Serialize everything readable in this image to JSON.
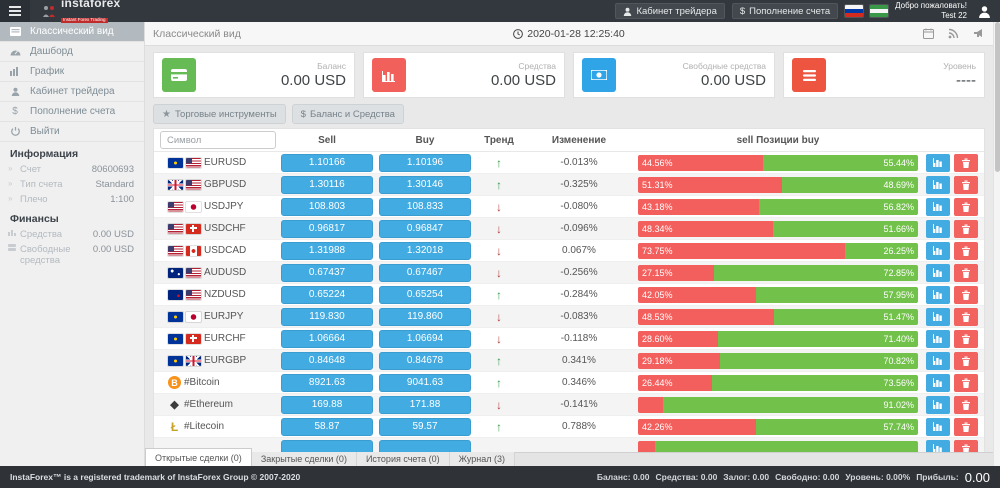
{
  "topbar": {
    "brand": "instaforex",
    "tagline": "Instant Forex Trading",
    "cabinet_button": "Кабинет трейдера",
    "deposit_button": "Пополнение счета",
    "welcome": "Добро пожаловать!",
    "username": "Test 22"
  },
  "sidebar": {
    "items": [
      {
        "label": "Классический вид",
        "active": true
      },
      {
        "label": "Дашборд",
        "active": false
      },
      {
        "label": "График",
        "active": false
      },
      {
        "label": "Кабинет трейдера",
        "active": false
      },
      {
        "label": "Пополнение счета",
        "active": false
      },
      {
        "label": "Выйти",
        "active": false
      }
    ],
    "info_section": {
      "title": "Информация",
      "rows": [
        {
          "label": "Счет",
          "value": "80600693"
        },
        {
          "label": "Тип счета",
          "value": "Standard"
        },
        {
          "label": "Плечо",
          "value": "1:100"
        }
      ]
    },
    "finance_section": {
      "title": "Финансы",
      "rows": [
        {
          "label": "Средства",
          "value": "0.00 USD"
        },
        {
          "label": "Свободные средства",
          "value": "0.00 USD"
        }
      ]
    }
  },
  "main": {
    "title": "Классический вид",
    "datetime": "2020-01-28 12:25:40",
    "cards": [
      {
        "label": "Баланс",
        "value": "0.00 USD",
        "color": "#66bb55",
        "icon": "credit-card"
      },
      {
        "label": "Средства",
        "value": "0.00 USD",
        "color": "#f2605c",
        "icon": "bar-chart"
      },
      {
        "label": "Свободные средства",
        "value": "0.00 USD",
        "color": "#2fa4e7",
        "icon": "eye"
      },
      {
        "label": "Уровень",
        "value": "----",
        "color": "#ed5540",
        "icon": "menu-lines"
      }
    ],
    "toolbar": {
      "instruments_button": "Торговые инструменты",
      "balance_button": "Баланс и Средства"
    },
    "table": {
      "symbol_placeholder": "Символ",
      "headers": {
        "sell": "Sell",
        "buy": "Buy",
        "trend": "Тренд",
        "change": "Изменение",
        "positions": "sell Позиции buy"
      },
      "rows": [
        {
          "symbol": "EURUSD",
          "flags": [
            "eu",
            "us"
          ],
          "sell": "1.10166",
          "buy": "1.10196",
          "trend": "up",
          "change": "-0.013%",
          "sell_pct": 44.56,
          "buy_pct": 55.44,
          "sell_label": "44.56%",
          "buy_label": "55.44%"
        },
        {
          "symbol": "GBPUSD",
          "flags": [
            "gb",
            "us"
          ],
          "sell": "1.30116",
          "buy": "1.30146",
          "trend": "up",
          "change": "-0.325%",
          "sell_pct": 51.31,
          "buy_pct": 48.69,
          "sell_label": "51.31%",
          "buy_label": "48.69%"
        },
        {
          "symbol": "USDJPY",
          "flags": [
            "us",
            "jp"
          ],
          "sell": "108.803",
          "buy": "108.833",
          "trend": "down",
          "change": "-0.080%",
          "sell_pct": 43.18,
          "buy_pct": 56.82,
          "sell_label": "43.18%",
          "buy_label": "56.82%"
        },
        {
          "symbol": "USDCHF",
          "flags": [
            "us",
            "ch"
          ],
          "sell": "0.96817",
          "buy": "0.96847",
          "trend": "down",
          "change": "-0.096%",
          "sell_pct": 48.34,
          "buy_pct": 51.66,
          "sell_label": "48.34%",
          "buy_label": "51.66%"
        },
        {
          "symbol": "USDCAD",
          "flags": [
            "us",
            "ca"
          ],
          "sell": "1.31988",
          "buy": "1.32018",
          "trend": "down",
          "change": "0.067%",
          "sell_pct": 73.75,
          "buy_pct": 26.25,
          "sell_label": "73.75%",
          "buy_label": "26.25%"
        },
        {
          "symbol": "AUDUSD",
          "flags": [
            "au",
            "us"
          ],
          "sell": "0.67437",
          "buy": "0.67467",
          "trend": "down",
          "change": "-0.256%",
          "sell_pct": 27.15,
          "buy_pct": 72.85,
          "sell_label": "27.15%",
          "buy_label": "72.85%"
        },
        {
          "symbol": "NZDUSD",
          "flags": [
            "nz",
            "us"
          ],
          "sell": "0.65224",
          "buy": "0.65254",
          "trend": "up",
          "change": "-0.284%",
          "sell_pct": 42.05,
          "buy_pct": 57.95,
          "sell_label": "42.05%",
          "buy_label": "57.95%"
        },
        {
          "symbol": "EURJPY",
          "flags": [
            "eu",
            "jp"
          ],
          "sell": "119.830",
          "buy": "119.860",
          "trend": "down",
          "change": "-0.083%",
          "sell_pct": 48.53,
          "buy_pct": 51.47,
          "sell_label": "48.53%",
          "buy_label": "51.47%"
        },
        {
          "symbol": "EURCHF",
          "flags": [
            "eu",
            "ch"
          ],
          "sell": "1.06664",
          "buy": "1.06694",
          "trend": "down",
          "change": "-0.118%",
          "sell_pct": 28.6,
          "buy_pct": 71.4,
          "sell_label": "28.60%",
          "buy_label": "71.40%"
        },
        {
          "symbol": "EURGBP",
          "flags": [
            "eu",
            "gb"
          ],
          "sell": "0.84648",
          "buy": "0.84678",
          "trend": "up",
          "change": "0.341%",
          "sell_pct": 29.18,
          "buy_pct": 70.82,
          "sell_label": "29.18%",
          "buy_label": "70.82%"
        },
        {
          "symbol": "#Bitcoin",
          "crypto": "btc",
          "sell": "8921.63",
          "buy": "9041.63",
          "trend": "up",
          "change": "0.346%",
          "sell_pct": 26.44,
          "buy_pct": 73.56,
          "sell_label": "26.44%",
          "buy_label": "73.56%"
        },
        {
          "symbol": "#Ethereum",
          "crypto": "eth",
          "sell": "169.88",
          "buy": "171.88",
          "trend": "down",
          "change": "-0.141%",
          "sell_pct": 8.98,
          "buy_pct": 91.02,
          "sell_label": "",
          "buy_label": "91.02%"
        },
        {
          "symbol": "#Litecoin",
          "crypto": "ltc",
          "sell": "58.87",
          "buy": "59.57",
          "trend": "up",
          "change": "0.788%",
          "sell_pct": 42.26,
          "buy_pct": 57.74,
          "sell_label": "42.26%",
          "buy_label": "57.74%"
        },
        {
          "symbol": "",
          "sell": "",
          "buy": "",
          "trend": "",
          "change": "",
          "sell_pct": 6,
          "buy_pct": 94,
          "sell_label": "",
          "buy_label": "",
          "partial": true
        }
      ]
    },
    "tabs": [
      {
        "label": "Открытые сделки (0)",
        "active": true
      },
      {
        "label": "Закрытые сделки (0)",
        "active": false
      },
      {
        "label": "История счета (0)",
        "active": false
      },
      {
        "label": "Журнал (3)",
        "active": false
      }
    ]
  },
  "footer": {
    "copyright": "InstaForex™ is a registered trademark of InstaForex Group © 2007-2020",
    "stats": [
      "Баланс: 0.00",
      "Средства: 0.00",
      "Залог: 0.00",
      "Свободно: 0.00",
      "Уровень: 0.00%",
      "Прибыль:"
    ],
    "profit_value": "0.00"
  }
}
